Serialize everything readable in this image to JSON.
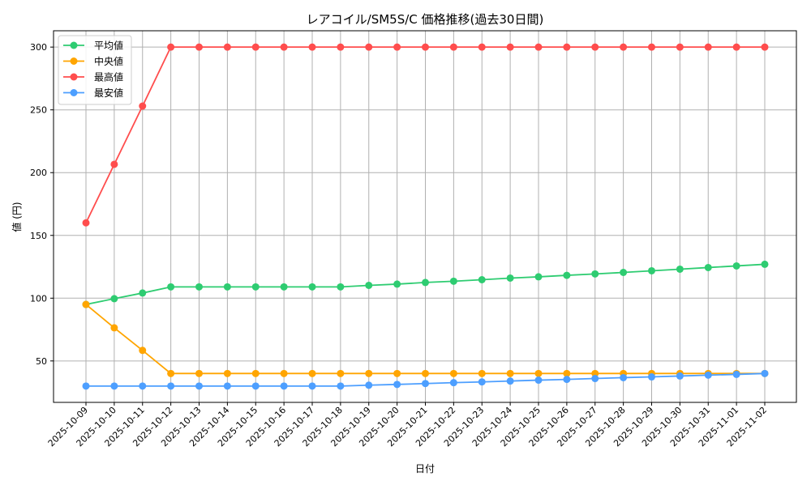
{
  "chart_data": {
    "type": "line",
    "title": "レアコイル/SM5S/C 価格推移(過去30日間)",
    "xlabel": "日付",
    "ylabel": "値 (円)",
    "ylim": [
      17,
      313
    ],
    "yticks": [
      50,
      100,
      150,
      200,
      250,
      300
    ],
    "grid": true,
    "legend_position": "top-left",
    "x": [
      "2025-10-09",
      "2025-10-10",
      "2025-10-11",
      "2025-10-12",
      "2025-10-13",
      "2025-10-14",
      "2025-10-15",
      "2025-10-16",
      "2025-10-17",
      "2025-10-18",
      "2025-10-19",
      "2025-10-20",
      "2025-10-21",
      "2025-10-22",
      "2025-10-23",
      "2025-10-24",
      "2025-10-25",
      "2025-10-26",
      "2025-10-27",
      "2025-10-28",
      "2025-10-29",
      "2025-10-30",
      "2025-10-31",
      "2025-11-01",
      "2025-11-02"
    ],
    "series": [
      {
        "name": "平均値",
        "color": "#2ecc71",
        "values": [
          95,
          99.6,
          104.1,
          109,
          109,
          109,
          109,
          109,
          109,
          109,
          110.2,
          111.2,
          112.5,
          113.5,
          114.7,
          116,
          117,
          118.2,
          119.3,
          120.5,
          121.8,
          123.1,
          124.4,
          125.7,
          127
        ]
      },
      {
        "name": "中央値",
        "color": "#ffa500",
        "values": [
          95,
          76.4,
          58.4,
          40,
          40,
          40,
          40,
          40,
          40,
          40,
          40,
          40,
          40,
          40,
          40,
          40,
          40,
          40,
          40,
          40,
          40,
          40,
          40,
          40,
          40
        ]
      },
      {
        "name": "最高値",
        "color": "#ff4d4d",
        "values": [
          160,
          206.6,
          253,
          300,
          300,
          300,
          300,
          300,
          300,
          300,
          300,
          300,
          300,
          300,
          300,
          300,
          300,
          300,
          300,
          300,
          300,
          300,
          300,
          300,
          300
        ]
      },
      {
        "name": "最安値",
        "color": "#4d9fff",
        "values": [
          30,
          30,
          30,
          30,
          30,
          30,
          30,
          30,
          30,
          30,
          30.7,
          31.3,
          32,
          32.7,
          33.3,
          34,
          34.7,
          35.3,
          36,
          36.7,
          37.3,
          38,
          38.7,
          39.3,
          40
        ]
      }
    ]
  }
}
